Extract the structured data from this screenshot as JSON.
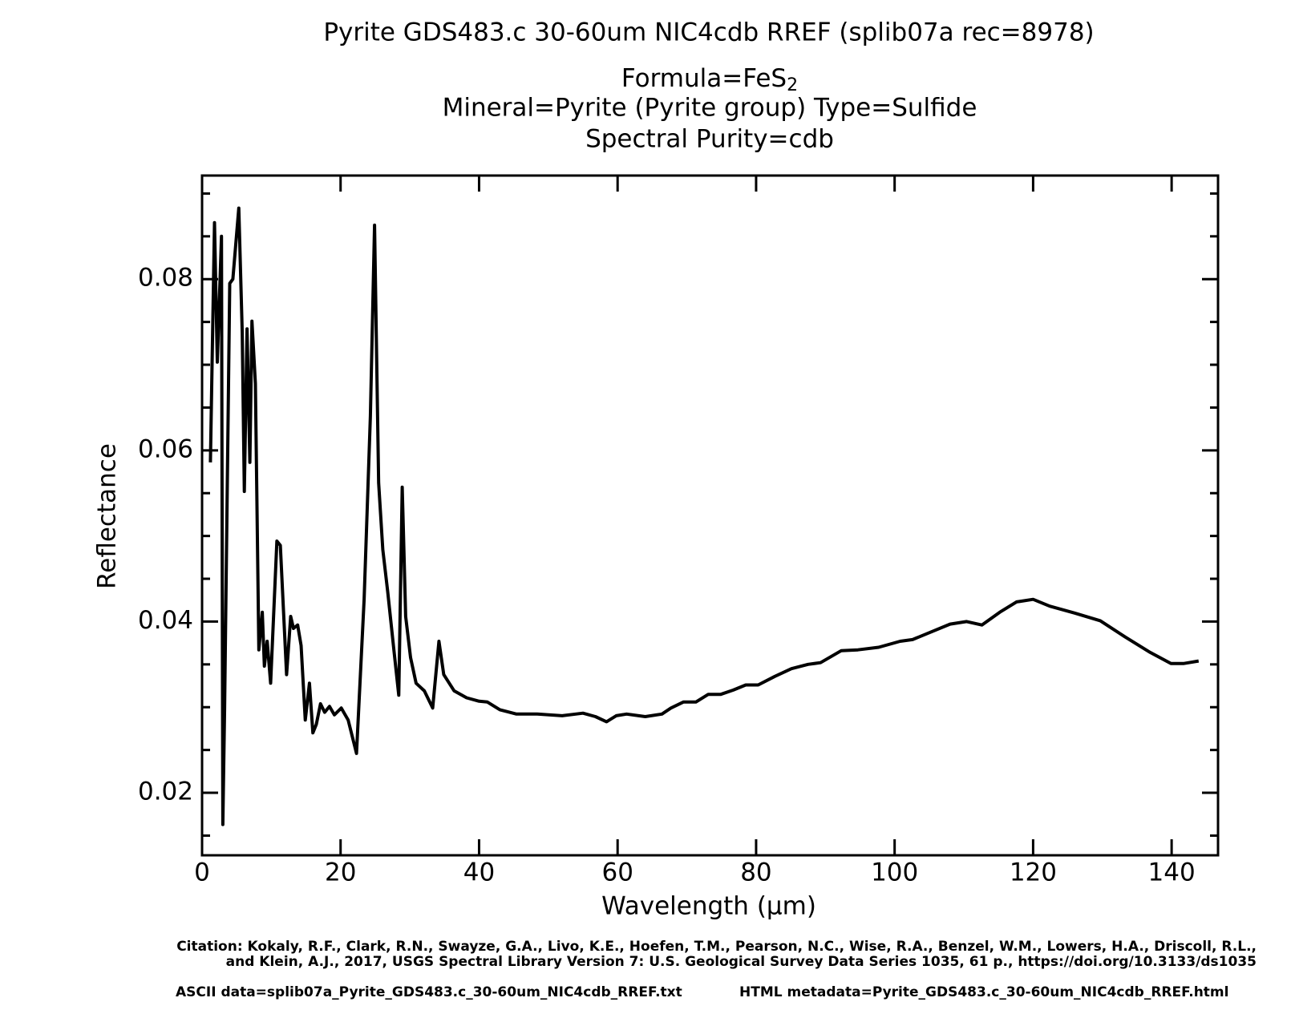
{
  "chart_data": {
    "type": "line",
    "title": "Pyrite GDS483.c 30-60um      NIC4cdb RREF   (splib07a rec=8978)",
    "formula": "Formula=FeS",
    "formula_subscript": "2",
    "mineral": "Mineral=Pyrite (Pyrite group)  Type=Sulfide",
    "purity": "Spectral Purity=cdb",
    "xlabel": "Wavelength (µm)",
    "ylabel": "Reflectance",
    "citation": [
      "Citation: Kokaly, R.F., Clark, R.N., Swayze, G.A., Livo, K.E., Hoefen, T.M., Pearson, N.C., Wise, R.A., Benzel, W.M., Lowers, H.A., Driscoll, R.L.,",
      "and Klein, A.J., 2017, USGS Spectral Library Version 7: U.S. Geological Survey Data Series 1035, 61 p., https://doi.org/10.3133/ds1035"
    ],
    "ascii_data": "ASCII data=splib07a_Pyrite_GDS483.c_30-60um_NIC4cdb_RREF.txt",
    "html_metadata": "HTML metadata=Pyrite_GDS483.c_30-60um_NIC4cdb_RREF.html",
    "color": "#000000",
    "xlim": [
      0,
      146.7
    ],
    "ylim": [
      0.0127,
      0.0921
    ],
    "xticks": [
      0,
      20,
      40,
      60,
      80,
      100,
      120,
      140
    ],
    "yticks": [
      0.02,
      0.04,
      0.06,
      0.08
    ],
    "yminorticks": [
      0.015,
      0.025,
      0.03,
      0.035,
      0.045,
      0.05,
      0.055,
      0.065,
      0.07,
      0.075,
      0.085,
      0.09
    ],
    "x": [
      1.2,
      1.8,
      2.2,
      2.8,
      3.0,
      3.25,
      4.0,
      4.45,
      5.3,
      5.8,
      6.1,
      6.5,
      6.9,
      7.2,
      7.7,
      8.2,
      8.7,
      9.0,
      9.4,
      9.9,
      10.8,
      11.3,
      12.2,
      12.8,
      13.2,
      13.8,
      14.3,
      14.9,
      15.5,
      16.0,
      16.5,
      17.1,
      17.7,
      18.4,
      19.1,
      20.1,
      21.1,
      22.3,
      23.4,
      24.3,
      24.9,
      25.5,
      26.1,
      26.8,
      27.7,
      28.4,
      28.9,
      29.4,
      30.1,
      30.9,
      32.1,
      33.3,
      34.2,
      34.9,
      36.4,
      38.2,
      40.0,
      41.2,
      43.0,
      45.4,
      48.4,
      52.0,
      55.0,
      56.8,
      58.4,
      59.8,
      61.3,
      64.0,
      66.4,
      67.7,
      69.5,
      71.3,
      73.1,
      74.9,
      76.7,
      78.5,
      80.3,
      82.7,
      85.1,
      87.5,
      89.3,
      92.3,
      94.7,
      97.7,
      100.8,
      102.6,
      105.0,
      108.0,
      110.4,
      112.6,
      115.2,
      117.6,
      120.0,
      122.4,
      126.0,
      129.7,
      133.3,
      136.9,
      139.9,
      141.7,
      143.9
    ],
    "values": [
      0.0586,
      0.0866,
      0.0703,
      0.085,
      0.0163,
      0.0299,
      0.0795,
      0.08,
      0.0883,
      0.0737,
      0.0552,
      0.0742,
      0.0586,
      0.0751,
      0.0678,
      0.0367,
      0.0411,
      0.0348,
      0.0377,
      0.0328,
      0.0494,
      0.0489,
      0.0338,
      0.0406,
      0.0392,
      0.0396,
      0.0372,
      0.0285,
      0.0328,
      0.027,
      0.028,
      0.0304,
      0.0294,
      0.0301,
      0.0291,
      0.0299,
      0.0285,
      0.0246,
      0.0426,
      0.064,
      0.0863,
      0.0562,
      0.0484,
      0.0435,
      0.0367,
      0.0314,
      0.0557,
      0.0406,
      0.0358,
      0.0328,
      0.0319,
      0.0299,
      0.0377,
      0.0338,
      0.0319,
      0.0311,
      0.0307,
      0.0306,
      0.0297,
      0.0292,
      0.0292,
      0.029,
      0.0293,
      0.0289,
      0.0283,
      0.029,
      0.0292,
      0.0289,
      0.0292,
      0.0299,
      0.0306,
      0.0306,
      0.0315,
      0.0315,
      0.032,
      0.0326,
      0.0326,
      0.0336,
      0.0345,
      0.035,
      0.0352,
      0.0366,
      0.0367,
      0.037,
      0.0377,
      0.0379,
      0.0387,
      0.0397,
      0.04,
      0.0396,
      0.0411,
      0.0423,
      0.0426,
      0.0418,
      0.041,
      0.0401,
      0.0382,
      0.0364,
      0.0351,
      0.0351,
      0.0354
    ]
  }
}
